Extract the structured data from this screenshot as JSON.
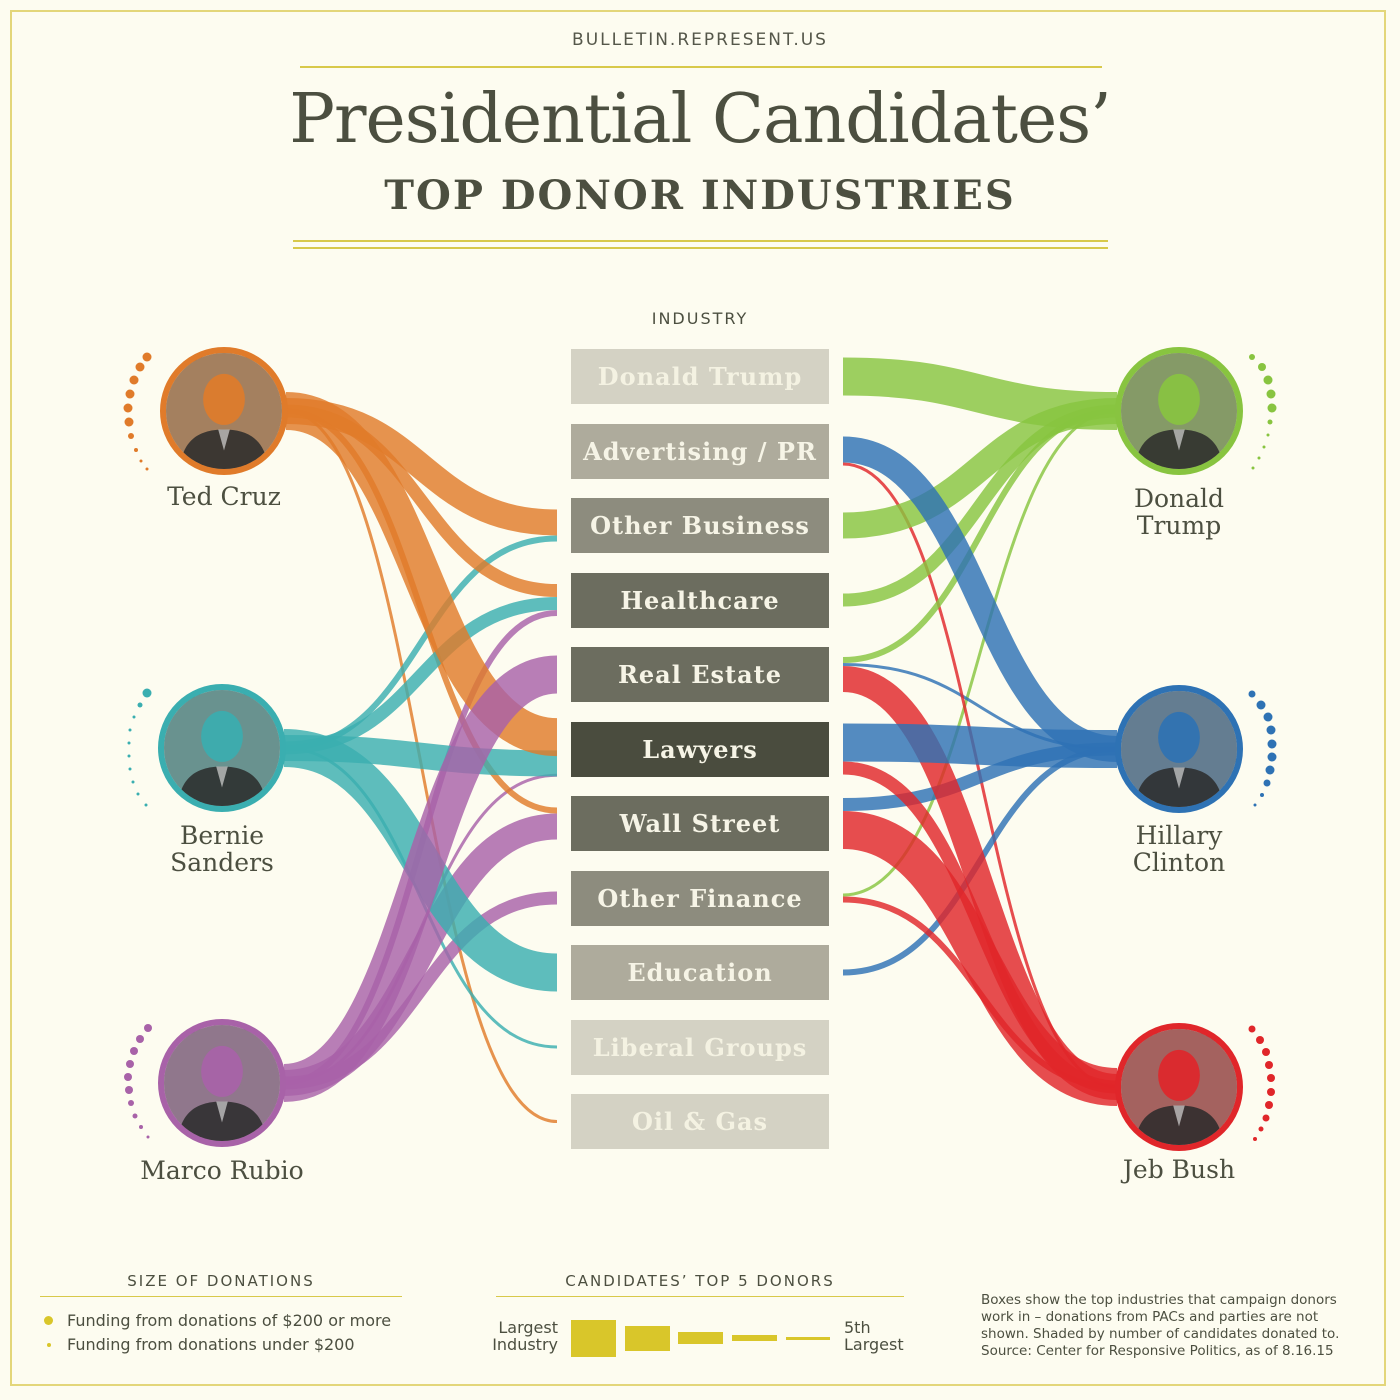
{
  "site": "BULLETIN.REPRESENT.US",
  "title": "Presidential Candidates’",
  "subtitle": "TOP DONOR INDUSTRIES",
  "industry_heading": "INDUSTRY",
  "industries": [
    {
      "label": "Donald Trump",
      "bg": "#d4d2c4",
      "fg": "#f4f2e2"
    },
    {
      "label": "Advertising / PR",
      "bg": "#aeab9c",
      "fg": "#f6f4e6"
    },
    {
      "label": "Other Business",
      "bg": "#8d8c7e",
      "fg": "#f6f4e6"
    },
    {
      "label": "Healthcare",
      "bg": "#6c6d5f",
      "fg": "#f6f4e6"
    },
    {
      "label": "Real Estate",
      "bg": "#6c6d5f",
      "fg": "#f6f4e6"
    },
    {
      "label": "Lawyers",
      "bg": "#4a4c3e",
      "fg": "#f6f4e6"
    },
    {
      "label": "Wall Street",
      "bg": "#6c6d5f",
      "fg": "#f6f4e6"
    },
    {
      "label": "Other Finance",
      "bg": "#8d8c7e",
      "fg": "#f6f4e6"
    },
    {
      "label": "Education",
      "bg": "#aeab9c",
      "fg": "#f6f4e6"
    },
    {
      "label": "Liberal Groups",
      "bg": "#d4d2c4",
      "fg": "#f4f2e2"
    },
    {
      "label": "Oil & Gas",
      "bg": "#d4d2c4",
      "fg": "#f4f2e2"
    }
  ],
  "candidates": [
    {
      "id": "cruz",
      "name_lines": [
        "Ted Cruz"
      ],
      "color": "#e07b2a",
      "side": "left"
    },
    {
      "id": "sanders",
      "name_lines": [
        "Bernie",
        "Sanders"
      ],
      "color": "#3aaeb0",
      "side": "left"
    },
    {
      "id": "rubio",
      "name_lines": [
        "Marco Rubio"
      ],
      "color": "#a862a8",
      "side": "left"
    },
    {
      "id": "trump",
      "name_lines": [
        "Donald",
        "Trump"
      ],
      "color": "#88c440",
      "side": "right"
    },
    {
      "id": "clinton",
      "name_lines": [
        "Hillary",
        "Clinton"
      ],
      "color": "#2e72b4",
      "side": "right"
    },
    {
      "id": "bush",
      "name_lines": [
        "Jeb Bush"
      ],
      "color": "#e0262a",
      "side": "right"
    }
  ],
  "links": [
    {
      "candidate": "cruz",
      "industry": "Lawyers",
      "rank": 1
    },
    {
      "candidate": "cruz",
      "industry": "Other Business",
      "rank": 2
    },
    {
      "candidate": "cruz",
      "industry": "Healthcare",
      "rank": 3
    },
    {
      "candidate": "cruz",
      "industry": "Wall Street",
      "rank": 4
    },
    {
      "candidate": "cruz",
      "industry": "Oil & Gas",
      "rank": 5
    },
    {
      "candidate": "sanders",
      "industry": "Education",
      "rank": 1
    },
    {
      "candidate": "sanders",
      "industry": "Lawyers",
      "rank": 2
    },
    {
      "candidate": "sanders",
      "industry": "Healthcare",
      "rank": 3
    },
    {
      "candidate": "sanders",
      "industry": "Other Business",
      "rank": 4
    },
    {
      "candidate": "sanders",
      "industry": "Liberal Groups",
      "rank": 5
    },
    {
      "candidate": "rubio",
      "industry": "Real Estate",
      "rank": 1
    },
    {
      "candidate": "rubio",
      "industry": "Wall Street",
      "rank": 2
    },
    {
      "candidate": "rubio",
      "industry": "Other Finance",
      "rank": 3
    },
    {
      "candidate": "rubio",
      "industry": "Healthcare",
      "rank": 4
    },
    {
      "candidate": "rubio",
      "industry": "Lawyers",
      "rank": 5
    },
    {
      "candidate": "trump",
      "industry": "Donald Trump",
      "rank": 1
    },
    {
      "candidate": "trump",
      "industry": "Other Business",
      "rank": 2
    },
    {
      "candidate": "trump",
      "industry": "Healthcare",
      "rank": 3
    },
    {
      "candidate": "trump",
      "industry": "Real Estate",
      "rank": 4
    },
    {
      "candidate": "trump",
      "industry": "Other Finance",
      "rank": 5
    },
    {
      "candidate": "clinton",
      "industry": "Lawyers",
      "rank": 1
    },
    {
      "candidate": "clinton",
      "industry": "Advertising / PR",
      "rank": 2
    },
    {
      "candidate": "clinton",
      "industry": "Wall Street",
      "rank": 3
    },
    {
      "candidate": "clinton",
      "industry": "Education",
      "rank": 4
    },
    {
      "candidate": "clinton",
      "industry": "Real Estate",
      "rank": 5
    },
    {
      "candidate": "bush",
      "industry": "Wall Street",
      "rank": 1
    },
    {
      "candidate": "bush",
      "industry": "Real Estate",
      "rank": 2
    },
    {
      "candidate": "bush",
      "industry": "Lawyers",
      "rank": 3
    },
    {
      "candidate": "bush",
      "industry": "Other Finance",
      "rank": 4
    },
    {
      "candidate": "bush",
      "industry": "Advertising / PR",
      "rank": 5
    }
  ],
  "size_legend": {
    "heading": "SIZE OF DONATIONS",
    "large": "Funding from donations of $200 or more",
    "small": "Funding from donations under $200"
  },
  "top5_legend": {
    "heading": "CANDIDATES’ TOP 5 DONORS",
    "left_label": [
      "Largest",
      "Industry"
    ],
    "right_label": [
      "5th",
      "Largest"
    ]
  },
  "note": "Boxes show the top industries that campaign donors work in – donations from PACs and parties are not shown. Shaded by number of candidates donated to. Source: Center for Responsive Politics, as of 8.16.15",
  "accent_color": "#d9c62a"
}
